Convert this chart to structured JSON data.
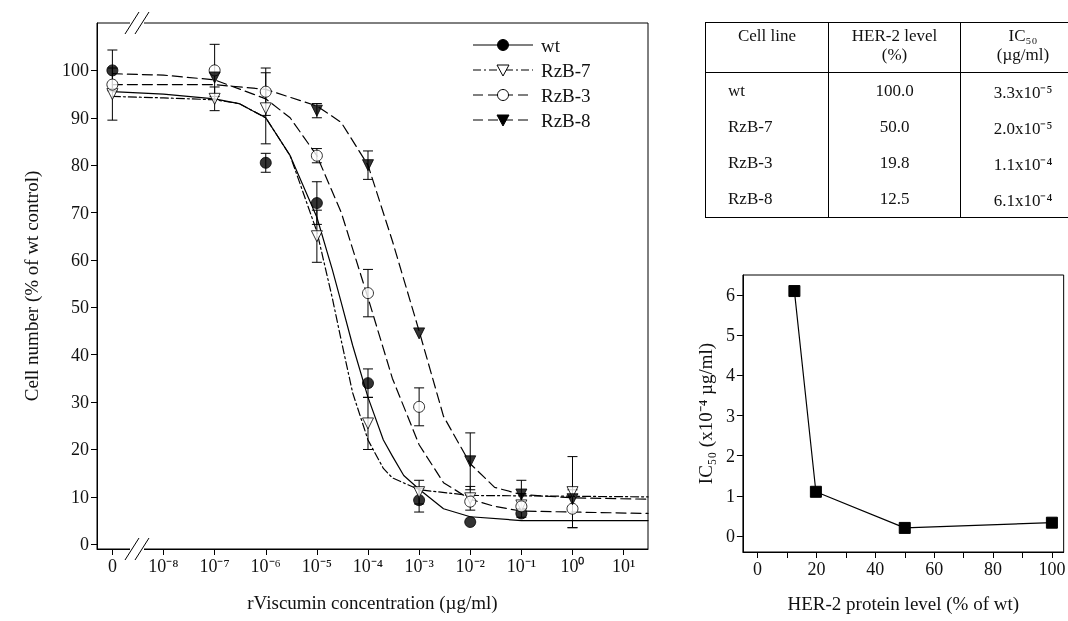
{
  "chart_data": [
    {
      "type": "scatter",
      "xlabel": "rViscumin concentration (µg/ml)",
      "ylabel": "Cell number (% of wt control)",
      "log": "x",
      "xlim": [
        5e-10,
        30
      ],
      "ylim": [
        -1,
        110
      ],
      "xticks": [
        {
          "value": 1e-09,
          "label": "0"
        },
        {
          "value": 1e-08,
          "label": "10⁻⁸"
        },
        {
          "value": 1e-07,
          "label": "10⁻⁷"
        },
        {
          "value": 1e-06,
          "label": "10⁻⁶"
        },
        {
          "value": 1e-05,
          "label": "10⁻⁵"
        },
        {
          "value": 0.0001,
          "label": "10⁻⁴"
        },
        {
          "value": 0.001,
          "label": "10⁻³"
        },
        {
          "value": 0.01,
          "label": "10⁻²"
        },
        {
          "value": 0.1,
          "label": "10⁻¹"
        },
        {
          "value": 1,
          "label": "10⁰"
        },
        {
          "value": 10,
          "label": "10¹"
        }
      ],
      "yticks": [
        0,
        10,
        20,
        30,
        40,
        50,
        60,
        70,
        80,
        90,
        100
      ],
      "grid": false,
      "legend": "top right",
      "series": [
        {
          "name": "wt",
          "type": "scatter",
          "marker": "circle",
          "color": "#000000",
          "line_style": "solid",
          "x": [
            1e-09,
            1e-07,
            1e-06,
            1e-05,
            0.0001,
            0.001,
            0.01,
            0.1
          ],
          "values": [
            100,
            null,
            80.5,
            72,
            34,
            9.3,
            4.7,
            6.5
          ],
          "errors": [
            4.3,
            null,
            2,
            4.5,
            3,
            2.5,
            null,
            null
          ]
        },
        {
          "name": "RzB-7",
          "type": "scatter",
          "marker": "triangle",
          "color": "#ffffff",
          "line_style": "dashdot",
          "x": [
            1e-09,
            1e-07,
            1e-06,
            1e-05,
            0.0001,
            0.001,
            0.01,
            0.1,
            1
          ],
          "values": [
            95,
            94,
            92,
            65,
            25.5,
            11,
            9.7,
            8.2,
            11
          ],
          "errors": [
            5.5,
            2.5,
            7.5,
            5.5,
            5.5,
            2.5,
            2.5,
            2.5,
            7.5
          ]
        },
        {
          "name": "RzB-3",
          "type": "scatter",
          "marker": "circle",
          "color": "#ffffff",
          "line_style": "dashed",
          "x": [
            1e-09,
            1e-07,
            1e-06,
            1e-05,
            0.0001,
            0.001,
            0.01,
            0.1,
            1
          ],
          "values": [
            97,
            100,
            95.5,
            82,
            53,
            29,
            9,
            8,
            7.5
          ],
          "errors": [
            null,
            5.5,
            5,
            1.5,
            5,
            4,
            null,
            null,
            4
          ]
        },
        {
          "name": "RzB-8",
          "type": "scatter",
          "marker": "triangle",
          "color": "#000000",
          "line_style": "dashed",
          "x": [
            1e-07,
            1e-05,
            0.0001,
            0.001,
            0.01,
            0.1,
            1
          ],
          "values": [
            98.5,
            91.5,
            80,
            44.5,
            17.5,
            10.5,
            9.5
          ],
          "errors": [
            null,
            1.5,
            3,
            null,
            6,
            3,
            null
          ]
        },
        {
          "type": "line",
          "marker": "none",
          "color": "#000000",
          "line_style": "solid",
          "x": [
            1e-09,
            1e-08,
            1e-07,
            3e-07,
            1e-06,
            3e-06,
            1e-05,
            2e-05,
            3e-05,
            5e-05,
            0.0001,
            0.0002,
            0.0003,
            0.0005,
            0.001,
            0.003,
            0.01,
            0.1,
            30
          ],
          "values": [
            95.5,
            95,
            94,
            93,
            90,
            82,
            69,
            58,
            51,
            42,
            31,
            22,
            18.6,
            14.5,
            11.6,
            7.5,
            5.8,
            5,
            5
          ]
        },
        {
          "type": "line",
          "marker": "none",
          "color": "#000000",
          "line_style": "dashdot",
          "x": [
            1e-09,
            1e-08,
            1e-07,
            3e-07,
            1e-06,
            3e-06,
            1e-05,
            2e-05,
            3e-05,
            5e-05,
            0.0001,
            0.0002,
            0.0003,
            0.001,
            0.01,
            30
          ],
          "values": [
            94.5,
            94.2,
            93.8,
            93,
            90,
            82,
            66,
            52,
            43,
            32,
            22,
            16,
            14,
            11.5,
            10.3,
            10
          ]
        },
        {
          "type": "line",
          "marker": "none",
          "color": "#000000",
          "line_style": "dashed",
          "x": [
            1e-09,
            1e-08,
            1e-07,
            1e-06,
            3e-06,
            1e-05,
            3e-05,
            0.0001,
            0.0003,
            0.001,
            0.003,
            0.01,
            0.03,
            0.1,
            30
          ],
          "values": [
            99.3,
            99,
            98,
            94,
            90,
            82,
            70,
            52,
            35,
            21,
            13,
            9.5,
            8,
            7,
            6.5
          ]
        },
        {
          "type": "line",
          "marker": "none",
          "color": "#000000",
          "line_style": "dashed",
          "x": [
            1e-09,
            1e-08,
            1e-07,
            1e-06,
            1e-05,
            3e-05,
            0.0001,
            0.0003,
            0.001,
            0.003,
            0.01,
            0.03,
            0.1,
            1,
            30
          ],
          "values": [
            97,
            97,
            97,
            96,
            92.5,
            89,
            80,
            64,
            45,
            27,
            17,
            12,
            10.5,
            9.8,
            9.5
          ]
        }
      ]
    },
    {
      "type": "other",
      "xlabel": "Cell line",
      "categories": [
        "wt",
        "RzB-7",
        "RzB-3",
        "RzB-8"
      ],
      "series": [
        {
          "name": "HER-2 level (%)",
          "values": [
            100.0,
            50.0,
            19.8,
            12.5
          ],
          "value_labels": [
            "100.0",
            "50.0",
            "19.8",
            "12.5"
          ]
        },
        {
          "name": "IC₅₀ (µg/ml)",
          "values": [
            3.3e-05,
            2e-05,
            0.00011,
            0.00061
          ],
          "value_labels": [
            "3.3x10⁻⁵",
            "2.0x10⁻⁵",
            "1.1x10⁻⁴",
            "6.1x10⁻⁴"
          ]
        }
      ]
    },
    {
      "type": "line",
      "xlabel": "HER-2 protein level (% of wt)",
      "ylabel": "IC₅₀ (x10⁻⁴ µg/ml)",
      "xlim": [
        -5,
        104
      ],
      "ylim": [
        -0.4,
        6.5
      ],
      "xticks": [
        0,
        {
          "value": 10,
          "label": null
        },
        20,
        {
          "value": 30,
          "label": null
        },
        40,
        {
          "value": 50,
          "label": null
        },
        60,
        {
          "value": 70,
          "label": null
        },
        80,
        {
          "value": 90,
          "label": null
        },
        100
      ],
      "yticks": [
        0,
        1,
        2,
        3,
        4,
        5,
        6
      ],
      "grid": false,
      "legend": false,
      "marker": "square",
      "line_style": "solid",
      "series": [
        {
          "color": "#000000",
          "x": [
            12.5,
            19.8,
            50,
            100
          ],
          "values": [
            6.1,
            1.1,
            0.2,
            0.33
          ]
        }
      ]
    }
  ]
}
